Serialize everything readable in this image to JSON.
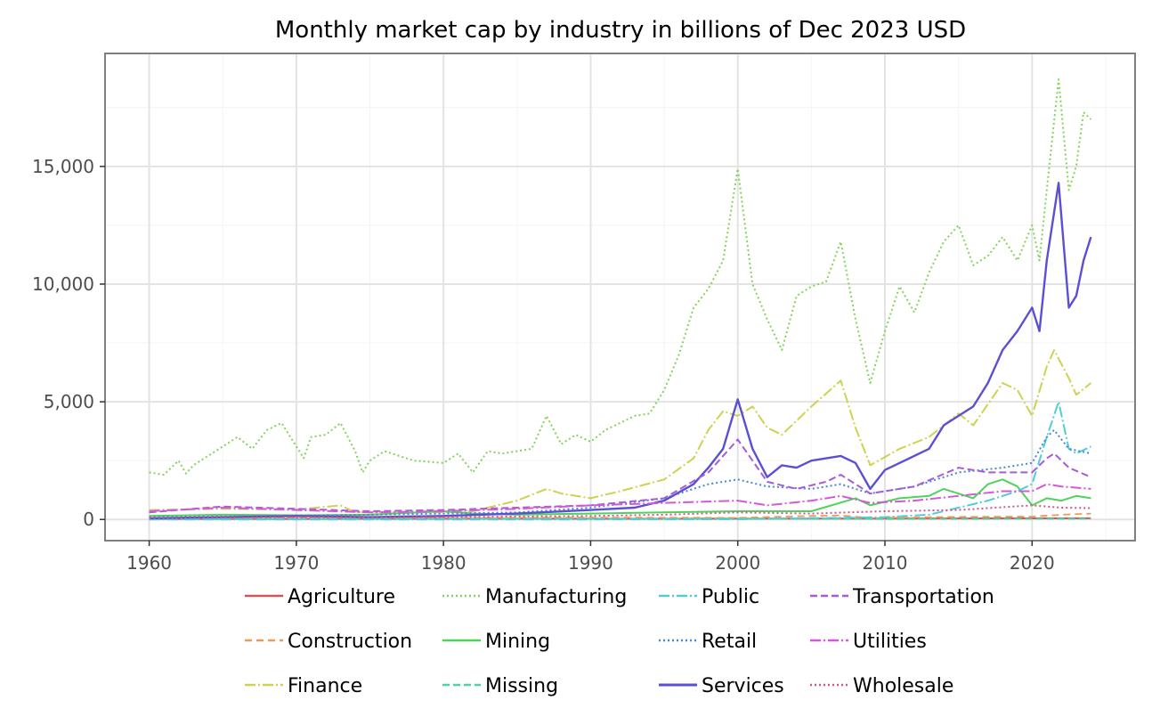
{
  "chart_data": {
    "type": "line",
    "title": "Monthly market cap by industry in billions of Dec 2023 USD",
    "xlabel": "",
    "ylabel": "",
    "xlim": [
      1957,
      2027
    ],
    "ylim": [
      -900,
      19800
    ],
    "x_ticks": [
      1960,
      1970,
      1980,
      1990,
      2000,
      2010,
      2020
    ],
    "x_minor_ticks": [
      1965,
      1975,
      1985,
      1995,
      2005,
      2015,
      2025
    ],
    "y_ticks": [
      0,
      5000,
      10000,
      15000
    ],
    "y_tick_labels": [
      "0",
      "5,000",
      "10,000",
      "15,000"
    ],
    "y_minor_ticks": [
      2500,
      7500,
      12500,
      17500
    ],
    "grid": true,
    "legend_position": "bottom",
    "series": [
      {
        "name": "Agriculture",
        "color": "#d45555",
        "dash": "",
        "width": 2,
        "points": [
          [
            1960,
            20
          ],
          [
            1970,
            25
          ],
          [
            1980,
            30
          ],
          [
            1990,
            30
          ],
          [
            2000,
            35
          ],
          [
            2010,
            40
          ],
          [
            2020,
            45
          ],
          [
            2024,
            50
          ]
        ]
      },
      {
        "name": "Construction",
        "color": "#e89b5e",
        "dash": "8,5",
        "width": 1.8,
        "points": [
          [
            1960,
            50
          ],
          [
            1970,
            80
          ],
          [
            1980,
            70
          ],
          [
            1990,
            80
          ],
          [
            2000,
            70
          ],
          [
            2005,
            150
          ],
          [
            2007,
            170
          ],
          [
            2009,
            60
          ],
          [
            2015,
            110
          ],
          [
            2020,
            120
          ],
          [
            2022,
            200
          ],
          [
            2024,
            250
          ]
        ]
      },
      {
        "name": "Finance",
        "color": "#cfd150",
        "dash": "12,3,2,3",
        "width": 2,
        "points": [
          [
            1960,
            400
          ],
          [
            1965,
            450
          ],
          [
            1970,
            420
          ],
          [
            1973,
            600
          ],
          [
            1974,
            300
          ],
          [
            1980,
            300
          ],
          [
            1982,
            350
          ],
          [
            1985,
            800
          ],
          [
            1987,
            1300
          ],
          [
            1988,
            1100
          ],
          [
            1990,
            900
          ],
          [
            1992,
            1200
          ],
          [
            1995,
            1700
          ],
          [
            1997,
            2600
          ],
          [
            1998,
            3800
          ],
          [
            1999,
            4600
          ],
          [
            2000,
            4400
          ],
          [
            2001,
            4800
          ],
          [
            2002,
            3900
          ],
          [
            2003,
            3600
          ],
          [
            2005,
            4800
          ],
          [
            2007,
            5900
          ],
          [
            2008,
            3900
          ],
          [
            2009,
            2300
          ],
          [
            2011,
            3000
          ],
          [
            2013,
            3500
          ],
          [
            2015,
            4500
          ],
          [
            2016,
            4000
          ],
          [
            2018,
            5800
          ],
          [
            2019,
            5500
          ],
          [
            2020,
            4400
          ],
          [
            2021,
            6500
          ],
          [
            2021.5,
            7200
          ],
          [
            2022.5,
            6000
          ],
          [
            2023,
            5300
          ],
          [
            2024,
            5800
          ]
        ]
      },
      {
        "name": "Manufacturing",
        "color": "#84d35a",
        "dash": "2,3",
        "width": 2,
        "points": [
          [
            1960,
            2000
          ],
          [
            1961,
            1900
          ],
          [
            1962,
            2500
          ],
          [
            1962.5,
            1950
          ],
          [
            1963,
            2300
          ],
          [
            1965,
            3100
          ],
          [
            1966,
            3500
          ],
          [
            1967,
            3000
          ],
          [
            1968,
            3800
          ],
          [
            1969,
            4100
          ],
          [
            1970,
            3100
          ],
          [
            1970.5,
            2600
          ],
          [
            1971,
            3500
          ],
          [
            1972,
            3600
          ],
          [
            1973,
            4100
          ],
          [
            1974,
            2900
          ],
          [
            1974.5,
            2000
          ],
          [
            1975,
            2500
          ],
          [
            1976,
            2900
          ],
          [
            1978,
            2500
          ],
          [
            1980,
            2400
          ],
          [
            1981,
            2800
          ],
          [
            1982,
            2000
          ],
          [
            1983,
            2900
          ],
          [
            1984,
            2800
          ],
          [
            1986,
            3000
          ],
          [
            1987,
            4400
          ],
          [
            1988,
            3200
          ],
          [
            1989,
            3600
          ],
          [
            1990,
            3300
          ],
          [
            1991,
            3800
          ],
          [
            1992,
            4100
          ],
          [
            1993,
            4400
          ],
          [
            1994,
            4500
          ],
          [
            1995,
            5500
          ],
          [
            1996,
            7000
          ],
          [
            1997,
            9000
          ],
          [
            1998,
            9800
          ],
          [
            1999,
            11000
          ],
          [
            2000,
            14900
          ],
          [
            2001,
            10000
          ],
          [
            2002,
            8500
          ],
          [
            2003,
            7200
          ],
          [
            2004,
            9500
          ],
          [
            2005,
            9900
          ],
          [
            2006,
            10100
          ],
          [
            2007,
            11800
          ],
          [
            2008,
            8500
          ],
          [
            2009,
            5800
          ],
          [
            2010,
            8000
          ],
          [
            2011,
            9900
          ],
          [
            2012,
            8800
          ],
          [
            2013,
            10500
          ],
          [
            2014,
            11800
          ],
          [
            2015,
            12500
          ],
          [
            2016,
            10800
          ],
          [
            2017,
            11200
          ],
          [
            2018,
            12000
          ],
          [
            2019,
            11000
          ],
          [
            2020,
            12500
          ],
          [
            2020.5,
            11000
          ],
          [
            2021,
            14000
          ],
          [
            2021.8,
            18700
          ],
          [
            2022.5,
            14000
          ],
          [
            2023,
            15000
          ],
          [
            2023.5,
            17300
          ],
          [
            2024,
            17000
          ]
        ]
      },
      {
        "name": "Mining",
        "color": "#4fd35a",
        "dash": "",
        "width": 2,
        "points": [
          [
            1960,
            150
          ],
          [
            1965,
            200
          ],
          [
            1970,
            180
          ],
          [
            1975,
            200
          ],
          [
            1980,
            350
          ],
          [
            1982,
            250
          ],
          [
            1985,
            200
          ],
          [
            1990,
            250
          ],
          [
            1995,
            300
          ],
          [
            2000,
            350
          ],
          [
            2005,
            350
          ],
          [
            2008,
            900
          ],
          [
            2009,
            600
          ],
          [
            2011,
            900
          ],
          [
            2013,
            1000
          ],
          [
            2014,
            1300
          ],
          [
            2016,
            900
          ],
          [
            2017,
            1500
          ],
          [
            2018,
            1700
          ],
          [
            2019,
            1400
          ],
          [
            2020,
            600
          ],
          [
            2021,
            900
          ],
          [
            2022,
            800
          ],
          [
            2023,
            1000
          ],
          [
            2024,
            900
          ]
        ]
      },
      {
        "name": "Missing",
        "color": "#4fd3a6",
        "dash": "8,4",
        "width": 1.8,
        "points": [
          [
            1960,
            10
          ],
          [
            1980,
            20
          ],
          [
            2000,
            30
          ],
          [
            2010,
            20
          ],
          [
            2024,
            30
          ]
        ]
      },
      {
        "name": "Public",
        "color": "#52cdd8",
        "dash": "12,3,2,3",
        "width": 2,
        "points": [
          [
            1960,
            0
          ],
          [
            1990,
            0
          ],
          [
            2000,
            10
          ],
          [
            2010,
            100
          ],
          [
            2013,
            200
          ],
          [
            2015,
            500
          ],
          [
            2017,
            800
          ],
          [
            2019,
            1200
          ],
          [
            2020,
            1500
          ],
          [
            2021,
            3500
          ],
          [
            2021.8,
            5000
          ],
          [
            2022.5,
            3000
          ],
          [
            2023,
            2800
          ],
          [
            2024,
            3100
          ]
        ]
      },
      {
        "name": "Retail",
        "color": "#4a86d8",
        "dash": "2,3",
        "width": 2,
        "points": [
          [
            1960,
            100
          ],
          [
            1970,
            150
          ],
          [
            1975,
            200
          ],
          [
            1980,
            250
          ],
          [
            1985,
            300
          ],
          [
            1990,
            500
          ],
          [
            1995,
            900
          ],
          [
            1998,
            1500
          ],
          [
            2000,
            1700
          ],
          [
            2002,
            1400
          ],
          [
            2005,
            1300
          ],
          [
            2007,
            1500
          ],
          [
            2009,
            1100
          ],
          [
            2012,
            1400
          ],
          [
            2015,
            2000
          ],
          [
            2018,
            2200
          ],
          [
            2020,
            2400
          ],
          [
            2021,
            3500
          ],
          [
            2021.5,
            3800
          ],
          [
            2022.5,
            3000
          ],
          [
            2024,
            2800
          ]
        ]
      },
      {
        "name": "Services",
        "color": "#5b4fd3",
        "dash": "",
        "width": 2.4,
        "points": [
          [
            1960,
            50
          ],
          [
            1965,
            100
          ],
          [
            1970,
            150
          ],
          [
            1975,
            100
          ],
          [
            1980,
            150
          ],
          [
            1985,
            250
          ],
          [
            1990,
            400
          ],
          [
            1993,
            500
          ],
          [
            1995,
            800
          ],
          [
            1997,
            1500
          ],
          [
            1998,
            2200
          ],
          [
            1999,
            3000
          ],
          [
            2000,
            5100
          ],
          [
            2001,
            3000
          ],
          [
            2002,
            1800
          ],
          [
            2003,
            2300
          ],
          [
            2004,
            2200
          ],
          [
            2005,
            2500
          ],
          [
            2007,
            2700
          ],
          [
            2008,
            2400
          ],
          [
            2009,
            1300
          ],
          [
            2010,
            2100
          ],
          [
            2011,
            2400
          ],
          [
            2013,
            3000
          ],
          [
            2014,
            4000
          ],
          [
            2015,
            4400
          ],
          [
            2016,
            4800
          ],
          [
            2017,
            5800
          ],
          [
            2018,
            7200
          ],
          [
            2019,
            8000
          ],
          [
            2020,
            9000
          ],
          [
            2020.5,
            8000
          ],
          [
            2021,
            11000
          ],
          [
            2021.8,
            14300
          ],
          [
            2022.5,
            9000
          ],
          [
            2023,
            9500
          ],
          [
            2023.5,
            11000
          ],
          [
            2024,
            12000
          ]
        ]
      },
      {
        "name": "Transportation",
        "color": "#a85bd8",
        "dash": "8,4",
        "width": 2,
        "points": [
          [
            1960,
            300
          ],
          [
            1962,
            400
          ],
          [
            1965,
            550
          ],
          [
            1970,
            450
          ],
          [
            1975,
            350
          ],
          [
            1980,
            400
          ],
          [
            1985,
            500
          ],
          [
            1990,
            600
          ],
          [
            1995,
            900
          ],
          [
            1998,
            2000
          ],
          [
            2000,
            3400
          ],
          [
            2002,
            1600
          ],
          [
            2004,
            1300
          ],
          [
            2006,
            1600
          ],
          [
            2007,
            1900
          ],
          [
            2009,
            1100
          ],
          [
            2012,
            1400
          ],
          [
            2015,
            2200
          ],
          [
            2017,
            2000
          ],
          [
            2020,
            2000
          ],
          [
            2021,
            2600
          ],
          [
            2021.5,
            2800
          ],
          [
            2022.5,
            2200
          ],
          [
            2024,
            1800
          ]
        ]
      },
      {
        "name": "Utilities",
        "color": "#d458d8",
        "dash": "12,3,2,3",
        "width": 2,
        "points": [
          [
            1960,
            350
          ],
          [
            1965,
            500
          ],
          [
            1970,
            400
          ],
          [
            1975,
            300
          ],
          [
            1980,
            350
          ],
          [
            1985,
            450
          ],
          [
            1990,
            600
          ],
          [
            1995,
            700
          ],
          [
            2000,
            800
          ],
          [
            2002,
            600
          ],
          [
            2005,
            800
          ],
          [
            2007,
            1000
          ],
          [
            2009,
            700
          ],
          [
            2012,
            800
          ],
          [
            2015,
            1000
          ],
          [
            2018,
            1200
          ],
          [
            2020,
            1200
          ],
          [
            2021,
            1500
          ],
          [
            2022,
            1400
          ],
          [
            2024,
            1300
          ]
        ]
      },
      {
        "name": "Wholesale",
        "color": "#d4558e",
        "dash": "2,3",
        "width": 2,
        "points": [
          [
            1960,
            50
          ],
          [
            1970,
            100
          ],
          [
            1980,
            100
          ],
          [
            1990,
            150
          ],
          [
            1995,
            200
          ],
          [
            2000,
            300
          ],
          [
            2005,
            250
          ],
          [
            2010,
            350
          ],
          [
            2015,
            400
          ],
          [
            2020,
            600
          ],
          [
            2022,
            500
          ],
          [
            2024,
            480
          ]
        ]
      }
    ]
  }
}
